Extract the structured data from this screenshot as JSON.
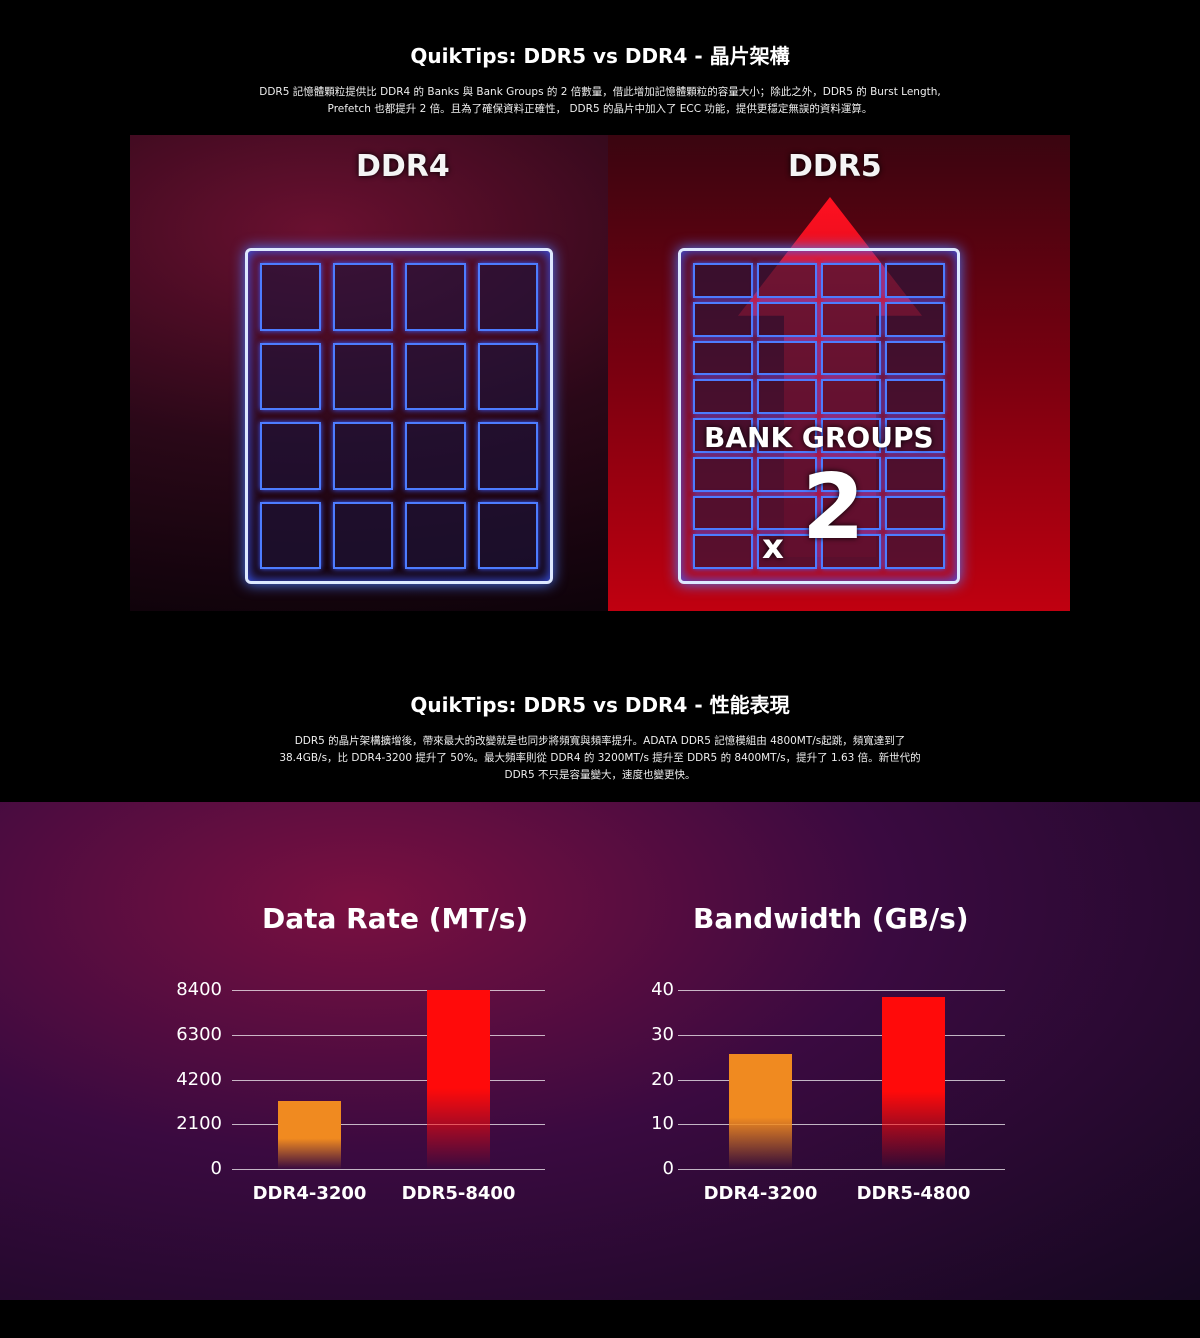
{
  "section1": {
    "title": "QuikTips: DDR5 vs DDR4 - 晶片架構",
    "text": "DDR5 記憶體顆粒提供比 DDR4 的 Banks 與 Bank Groups 的 2 倍數量，借此增加記憶體顆粒的容量大小；除此之外，DDR5 的 Burst Length, Prefetch 也都提升 2 倍。且為了確保資料正確性， DDR5 的晶片中加入了 ECC 功能，提供更穩定無誤的資料運算。",
    "illustration": {
      "left_label": "DDR4",
      "right_label": "DDR5",
      "badge": "BANK GROUPS",
      "multiplier_x": "x",
      "multiplier": "2"
    }
  },
  "section2": {
    "title": "QuikTips: DDR5 vs DDR4 - 性能表現",
    "text": "DDR5 的晶片架構擴增後，帶來最大的改變就是也同步將頻寬與頻率提升。ADATA  DDR5 記憶模組由 4800MT/s起跳，頻寬達到了 38.4GB/s，比 DDR4-3200 提升了 50%。最大頻率則從 DDR4 的 3200MT/s 提升至 DDR5 的 8400MT/s，提升了 1.63 倍。新世代的 DDR5 不只是容量變大，速度也變更快。"
  },
  "chart_data": [
    {
      "type": "bar",
      "title": "Data Rate (MT/s)",
      "categories": [
        "DDR4-3200",
        "DDR5-8400"
      ],
      "values": [
        3200,
        8400
      ],
      "yticks": [
        "0",
        "2100",
        "4200",
        "6300",
        "8400"
      ],
      "ylim": [
        0,
        8400
      ],
      "grid": true,
      "colors": [
        "#f08a20",
        "#ff0a0a"
      ]
    },
    {
      "type": "bar",
      "title": "Bandwidth (GB/s)",
      "categories": [
        "DDR4-3200",
        "DDR5-4800"
      ],
      "values": [
        25.6,
        38.4
      ],
      "yticks": [
        "0",
        "10",
        "20",
        "30",
        "40"
      ],
      "ylim": [
        0,
        40
      ],
      "grid": true,
      "colors": [
        "#f08a20",
        "#ff0a0a"
      ]
    }
  ]
}
